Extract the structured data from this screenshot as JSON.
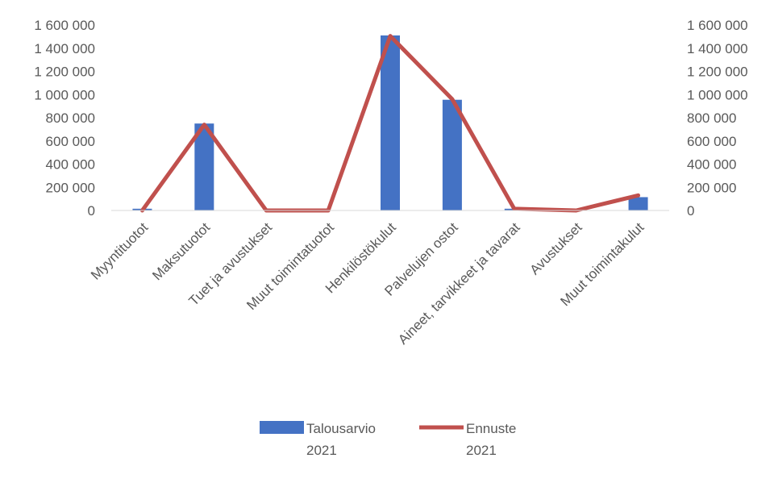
{
  "chart_data": {
    "type": "bar+line",
    "categories": [
      "Myyntituotot",
      "Maksutuotot",
      "Tuet ja avustukset",
      "Muut toimintatuotot",
      "Henkilöstökulut",
      "Palvelujen ostot",
      "Aineet, tarvikkeet ja tavarat",
      "Avustukset",
      "Muut toimintakulut"
    ],
    "series": [
      {
        "name_lines": [
          "Talousarvio",
          "2021"
        ],
        "type": "bar",
        "color": "#4472C4",
        "values": [
          15000,
          750000,
          0,
          0,
          1510000,
          955000,
          15000,
          0,
          115000
        ]
      },
      {
        "name_lines": [
          "Ennuste",
          "2021"
        ],
        "type": "line",
        "color": "#C0504D",
        "values": [
          0,
          740000,
          0,
          0,
          1505000,
          960000,
          15000,
          0,
          130000
        ]
      }
    ],
    "ylim": [
      0,
      1600000
    ],
    "y_ticks": [
      0,
      200000,
      400000,
      600000,
      800000,
      1000000,
      1200000,
      1400000,
      1600000
    ],
    "y_tick_labels": [
      "0",
      "200 000",
      "400 000",
      "600 000",
      "800 000",
      "1 000 000",
      "1 200 000",
      "1 400 000",
      "1 600 000"
    ],
    "y2_tick_labels": [
      "0",
      "200 000",
      "400 000",
      "600 000",
      "800 000",
      "1 000 000",
      "1 200 000",
      "1 400 000",
      "1 600 000"
    ],
    "legend_position": "bottom",
    "grid": false
  }
}
